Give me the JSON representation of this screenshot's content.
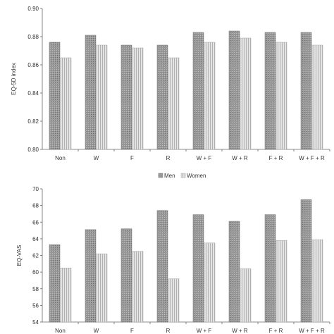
{
  "legend": {
    "men_label": "Men",
    "women_label": "Women",
    "position": "between-charts-center"
  },
  "colors": {
    "men_fill": "#9a9a9a",
    "men_stroke": "#6e6e6e",
    "women_fill": "#d8d8d8",
    "women_stroke": "#a8a8a8",
    "axis": "#666666"
  },
  "chart_data": [
    {
      "type": "bar",
      "title": "",
      "xlabel": "",
      "ylabel": "EQ-5D index",
      "ylim": [
        0.8,
        0.9
      ],
      "yticks": [
        "0.80",
        "0.82",
        "0.84",
        "0.86",
        "0.88",
        "0.90"
      ],
      "grid": false,
      "categories": [
        "Non",
        "W",
        "F",
        "R",
        "W + F",
        "W + R",
        "F + R",
        "W + F + R"
      ],
      "series": [
        {
          "name": "Men",
          "values": [
            0.876,
            0.881,
            0.874,
            0.874,
            0.883,
            0.884,
            0.883,
            0.883
          ]
        },
        {
          "name": "Women",
          "values": [
            0.865,
            0.874,
            0.872,
            0.865,
            0.876,
            0.879,
            0.876,
            0.874
          ]
        }
      ]
    },
    {
      "type": "bar",
      "title": "",
      "xlabel": "",
      "ylabel": "EQ-VAS",
      "ylim": [
        54,
        70
      ],
      "yticks": [
        "54",
        "56",
        "58",
        "60",
        "62",
        "64",
        "66",
        "68",
        "70"
      ],
      "grid": false,
      "categories": [
        "Non",
        "W",
        "F",
        "R",
        "W + F",
        "W + R",
        "F + R",
        "W + F + R"
      ],
      "series": [
        {
          "name": "Men",
          "values": [
            63.3,
            65.1,
            65.2,
            67.4,
            66.9,
            66.1,
            66.9,
            68.7
          ]
        },
        {
          "name": "Women",
          "values": [
            60.5,
            62.2,
            62.5,
            59.2,
            63.5,
            60.4,
            63.8,
            63.9
          ]
        }
      ]
    }
  ]
}
